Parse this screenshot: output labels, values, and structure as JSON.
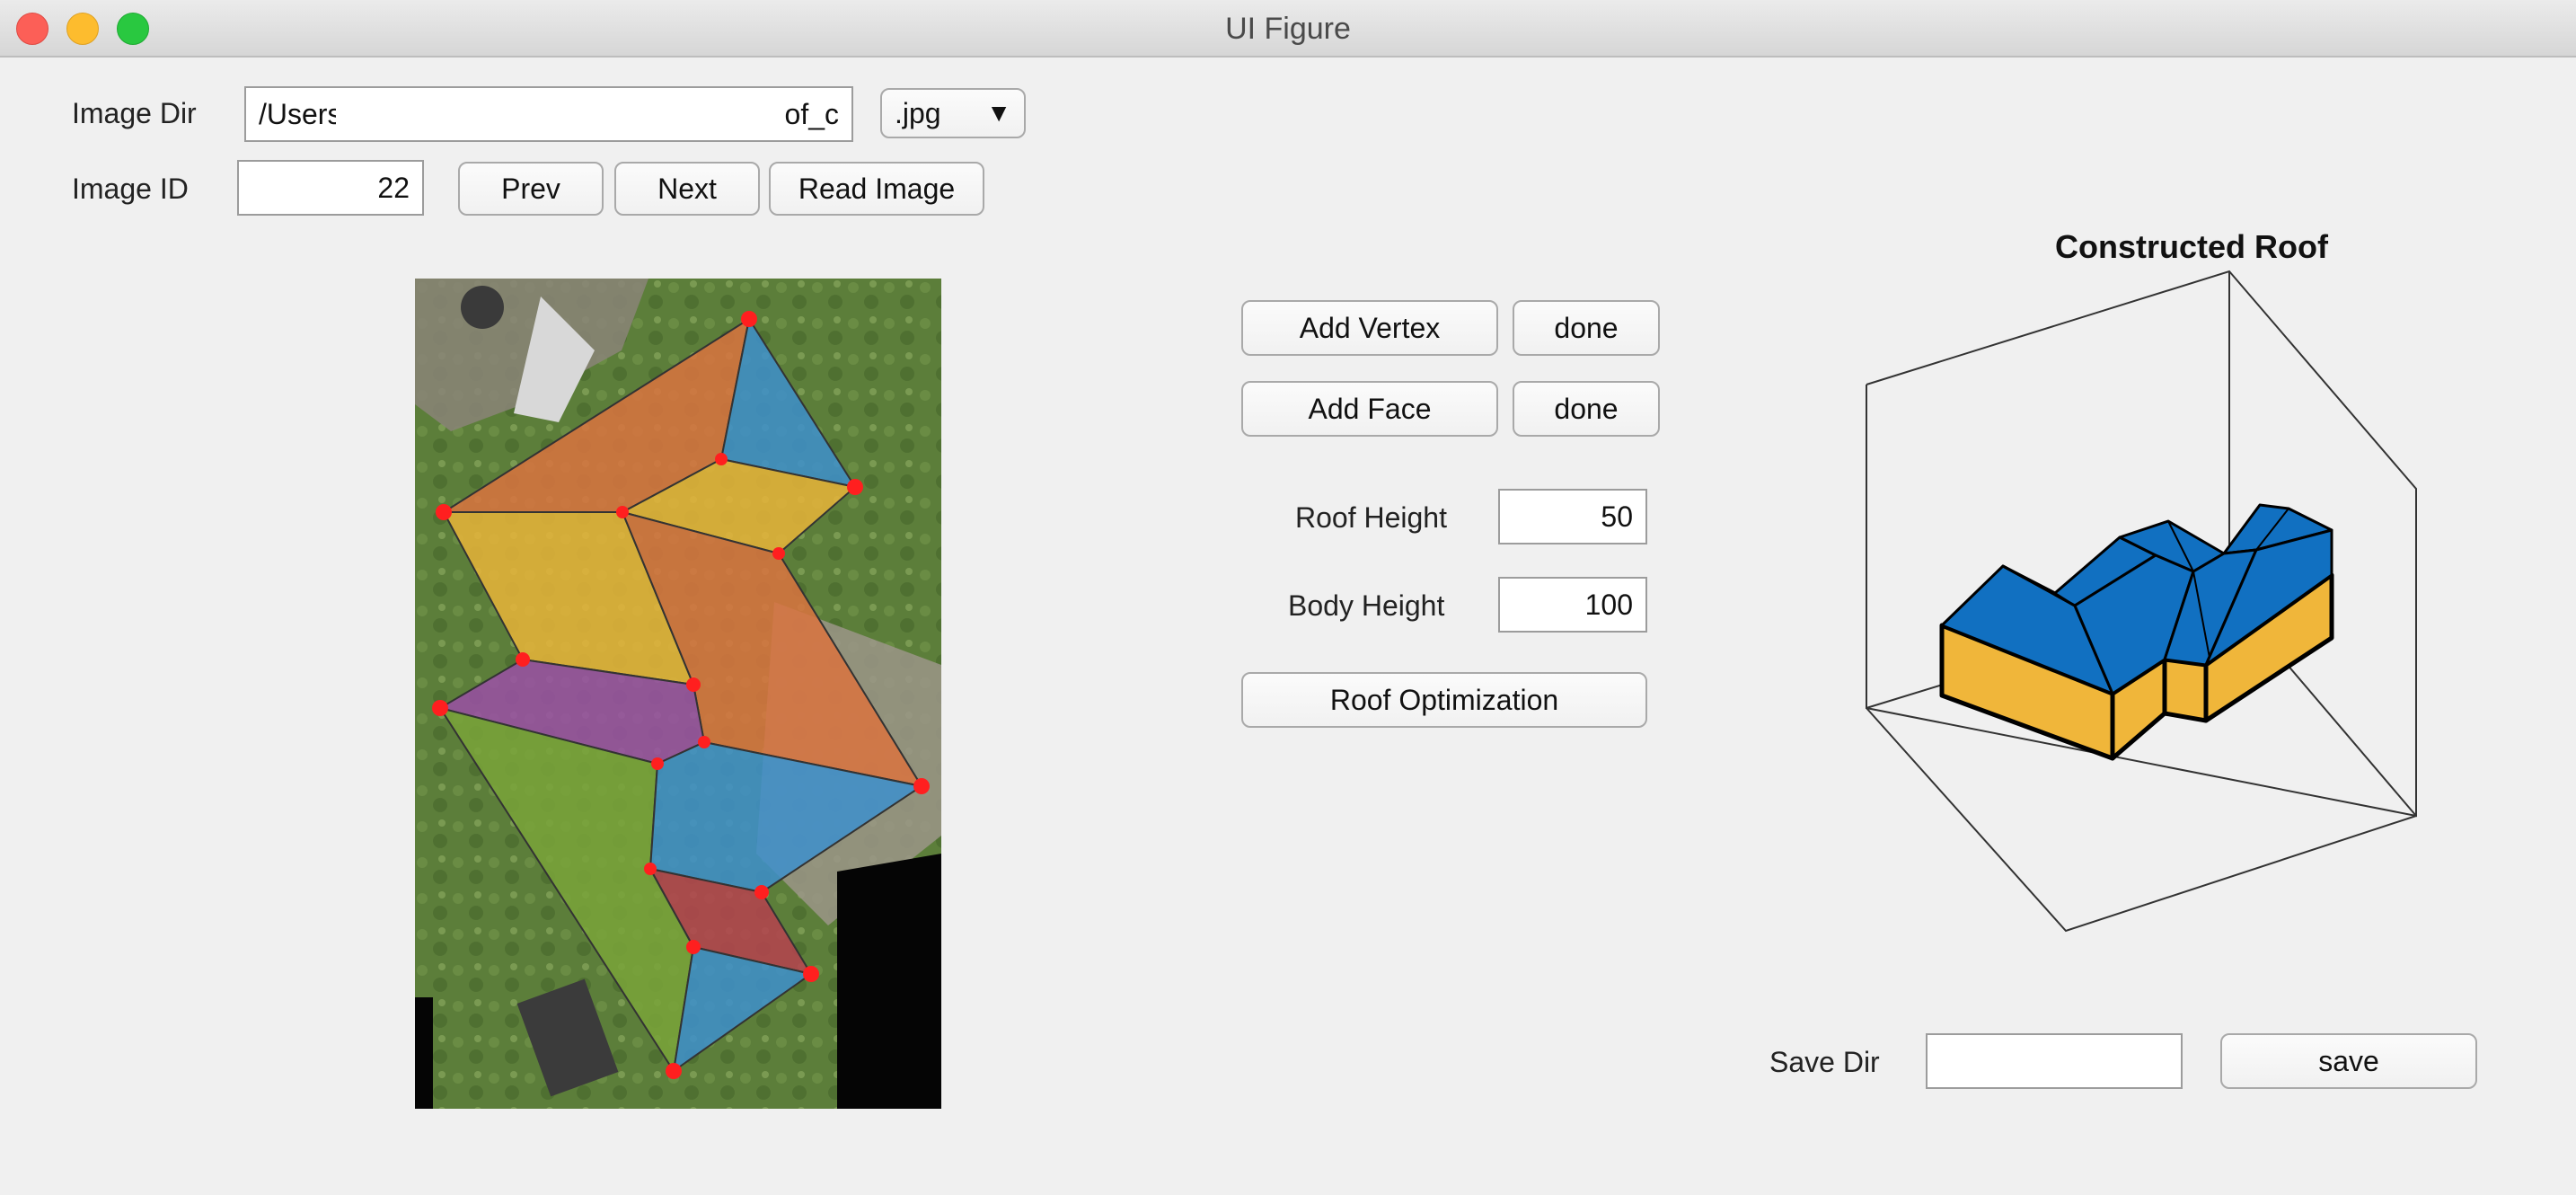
{
  "window": {
    "title": "UI Figure"
  },
  "image_dir": {
    "label": "Image Dir",
    "value_prefix": "/Users",
    "value_suffix": "of_c"
  },
  "extension": {
    "selected": ".jpg",
    "caret": "▼"
  },
  "image_id": {
    "label": "Image ID",
    "value": "22"
  },
  "buttons": {
    "prev": "Prev",
    "next": "Next",
    "read_image": "Read Image",
    "add_vertex": "Add Vertex",
    "add_vertex_done": "done",
    "add_face": "Add Face",
    "add_face_done": "done",
    "roof_optimization": "Roof Optimization",
    "save": "save"
  },
  "roof_height": {
    "label": "Roof Height",
    "value": "50"
  },
  "body_height": {
    "label": "Body Height",
    "value": "100"
  },
  "plot": {
    "title": "Constructed Roof"
  },
  "save_dir": {
    "label": "Save Dir",
    "value": ""
  },
  "colors": {
    "face_orange": "#d9733f",
    "face_blue": "#3d8fcc",
    "face_yellow": "#e7b43a",
    "face_purple": "#9a4fa6",
    "face_green": "#79a33a",
    "face_red": "#b5424f",
    "vertex": "#ff1f1f",
    "roof_blue": "#1170c1",
    "wall_yellow": "#f0b63a"
  }
}
